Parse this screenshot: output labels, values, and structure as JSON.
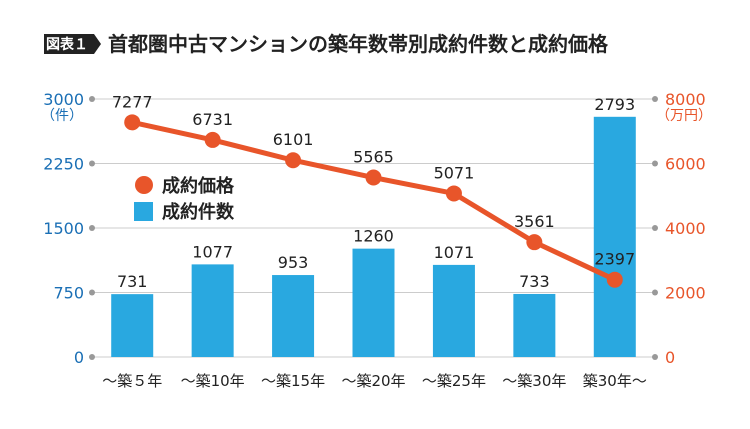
{
  "badge": "図表１",
  "title": "首都圏中古マンションの築年数帯別成約件数と成約価格",
  "colors": {
    "bar": "#29a8e0",
    "line": "#e8552a",
    "left_axis": "#1a6fb5",
    "right_axis": "#e8552a",
    "grid": "#cccccc",
    "text": "#222222"
  },
  "chart_data": {
    "type": "bar+line",
    "categories": [
      "～築５年",
      "～築10年",
      "～築15年",
      "～築20年",
      "～築25年",
      "～築30年",
      "築30年～"
    ],
    "series": [
      {
        "name": "成約件数",
        "type": "bar",
        "axis": "left",
        "values": [
          731,
          1077,
          953,
          1260,
          1071,
          733,
          2793
        ]
      },
      {
        "name": "成約価格",
        "type": "line",
        "axis": "right",
        "values": [
          7277,
          6731,
          6101,
          5565,
          5071,
          3561,
          2397
        ]
      }
    ],
    "left_axis": {
      "unit": "（件）",
      "ylim": [
        0,
        3000
      ],
      "ticks": [
        "3000",
        "2250",
        "1500",
        "750",
        "0"
      ]
    },
    "right_axis": {
      "unit": "（万円）",
      "ylim": [
        0,
        8000
      ],
      "ticks": [
        "8000",
        "6000",
        "4000",
        "2000",
        "0"
      ]
    },
    "legend": {
      "position": "upper-left",
      "entries": [
        "成約価格",
        "成約件数"
      ]
    },
    "grid": true
  }
}
